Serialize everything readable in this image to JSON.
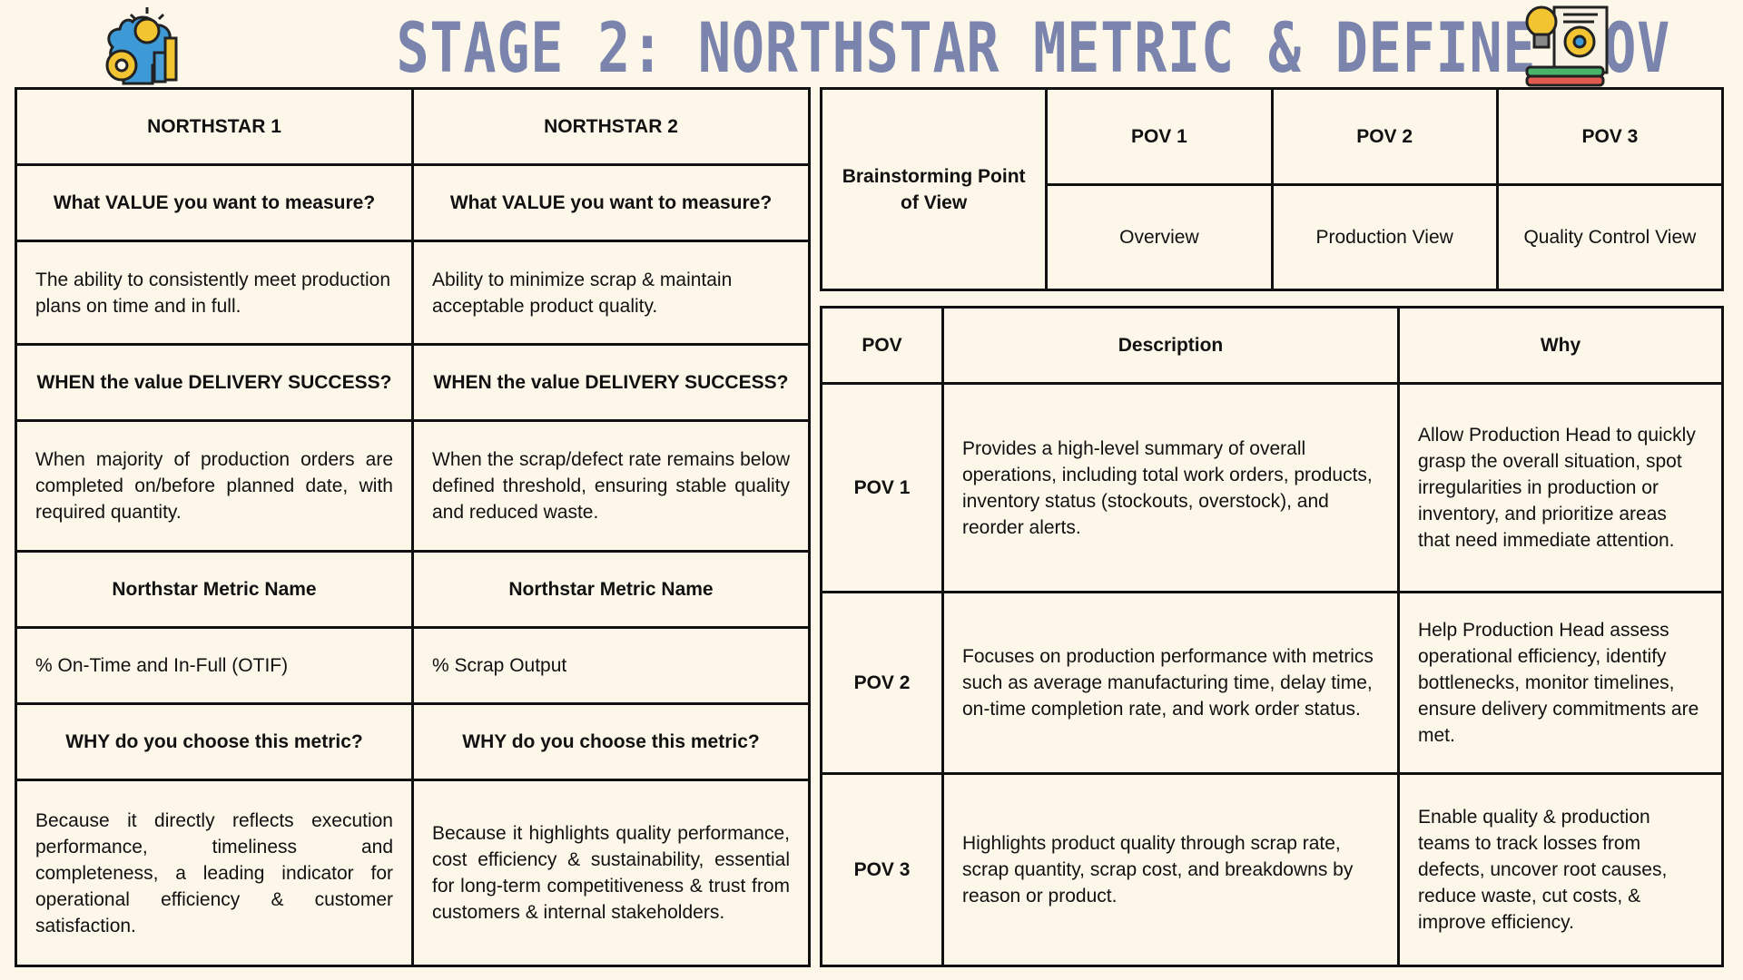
{
  "title": "STAGE 2: NORTHSTAR METRIC & DEFINE POV",
  "icons": {
    "left": "brain-gears-pencil-icon",
    "right": "lightbulb-gear-book-icon"
  },
  "colors": {
    "background": "#fdf7ea",
    "title": "#7a84ad",
    "border": "#111111"
  },
  "northstar": {
    "ns1": {
      "label": "NORTHSTAR 1",
      "value_q": "What VALUE you want to measure?",
      "value_a": "The ability to consistently meet production plans on time and in full.",
      "when_q": "WHEN the value DELIVERY SUCCESS?",
      "when_a": "When majority of production orders are completed on/before  planned date, with required quantity.",
      "metric_q": "Northstar Metric Name",
      "metric_a": "% On-Time and In-Full (OTIF)",
      "why_q": "WHY do you choose this metric?",
      "why_a": "Because it directly reflects execution performance, timeliness and completeness, a leading indicator for operational efficiency & customer satisfaction."
    },
    "ns2": {
      "label": "NORTHSTAR 2",
      "value_q": "What VALUE you want to measure?",
      "value_a": "Ability to minimize scrap & maintain acceptable product quality.",
      "when_q": "WHEN the value DELIVERY SUCCESS?",
      "when_a": "When the scrap/defect rate remains below defined threshold, ensuring stable quality and reduced waste.",
      "metric_q": "Northstar Metric Name",
      "metric_a": "% Scrap Output",
      "why_q": "WHY do you choose this metric?",
      "why_a": "Because it highlights quality performance, cost efficiency & sustainability, essential for long-term competitiveness & trust from customers & internal stakeholders."
    }
  },
  "brainstorm": {
    "label": "Brainstorming Point of View",
    "povs": [
      {
        "name": "POV 1",
        "view": "Overview"
      },
      {
        "name": "POV 2",
        "view": "Production View"
      },
      {
        "name": "POV 3",
        "view": "Quality Control View"
      }
    ]
  },
  "pov_table": {
    "headers": {
      "pov": "POV",
      "description": "Description",
      "why": "Why"
    },
    "rows": [
      {
        "pov": "POV 1",
        "description": "Provides a high-level summary of overall operations, including total work orders, products, inventory status (stockouts, overstock), and reorder alerts.",
        "why": "Allow Production Head  to quickly grasp the overall situation, spot irregularities in production or inventory, and prioritize areas that need immediate attention."
      },
      {
        "pov": "POV 2",
        "description": "Focuses on production performance with metrics such as average manufacturing time, delay time, on-time completion rate, and work order status.",
        "why": "Help Production Head assess operational efficiency, identify bottlenecks, monitor timelines, ensure delivery commitments are met."
      },
      {
        "pov": "POV 3",
        "description": "Highlights product quality through scrap rate, scrap quantity, scrap cost, and breakdowns by reason or product.",
        "why": "Enable quality & production teams to track losses from defects, uncover root causes, reduce waste, cut costs,  & improve efficiency."
      }
    ]
  }
}
